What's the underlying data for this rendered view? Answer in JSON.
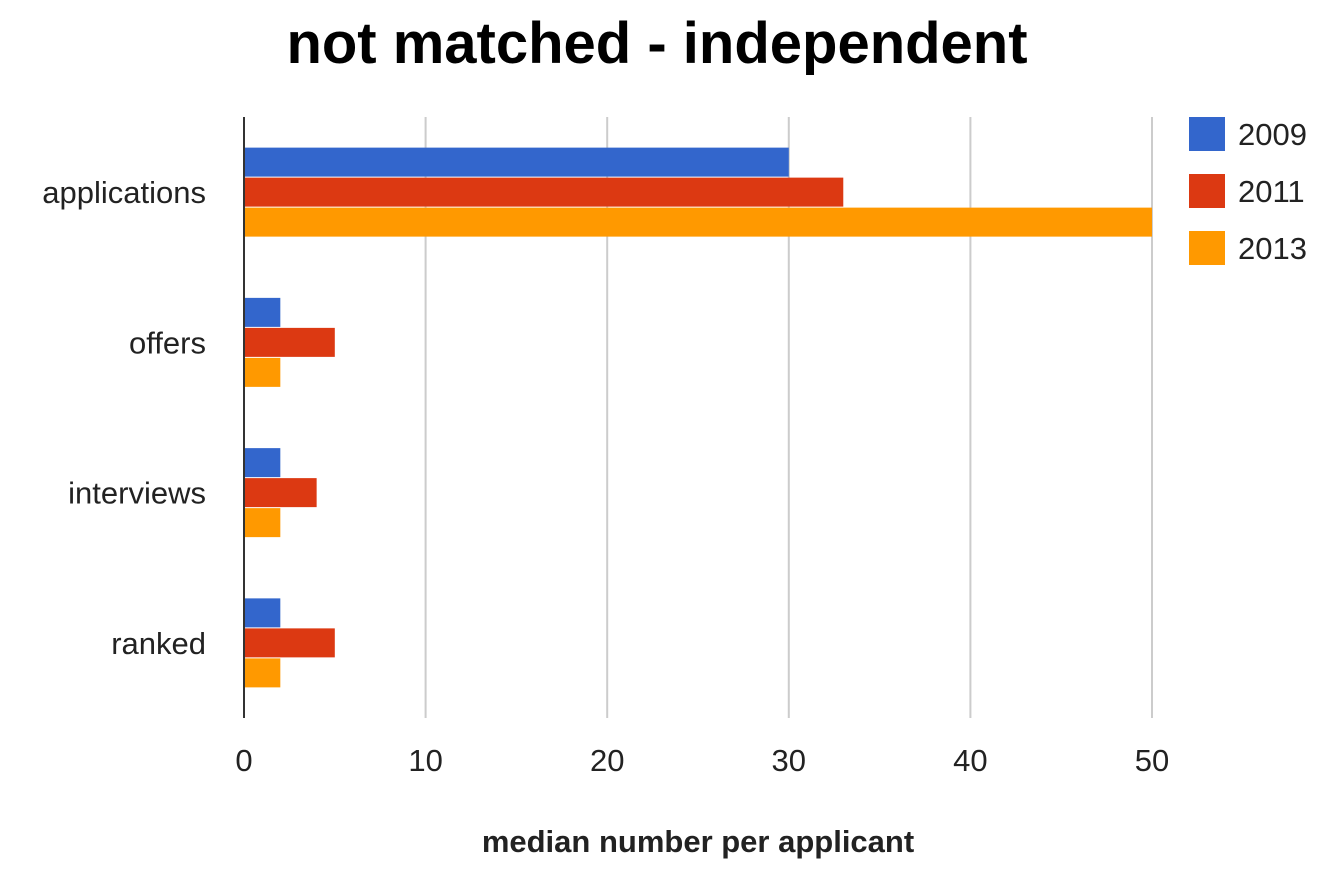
{
  "chart_data": {
    "type": "bar",
    "orientation": "horizontal",
    "title": "not matched - independent",
    "xlabel": "median number per applicant",
    "ylabel": "",
    "categories": [
      "applications",
      "offers",
      "interviews",
      "ranked"
    ],
    "series": [
      {
        "name": "2009",
        "color": "#3366cc",
        "values": [
          30,
          2,
          2,
          2
        ]
      },
      {
        "name": "2011",
        "color": "#dc3912",
        "values": [
          33,
          5,
          4,
          5
        ]
      },
      {
        "name": "2013",
        "color": "#ff9900",
        "values": [
          50,
          2,
          2,
          2
        ]
      }
    ],
    "xlim": [
      0,
      50
    ],
    "xticks": [
      "0",
      "10",
      "20",
      "30",
      "40",
      "50"
    ],
    "grid": true,
    "legend_position": "right"
  }
}
